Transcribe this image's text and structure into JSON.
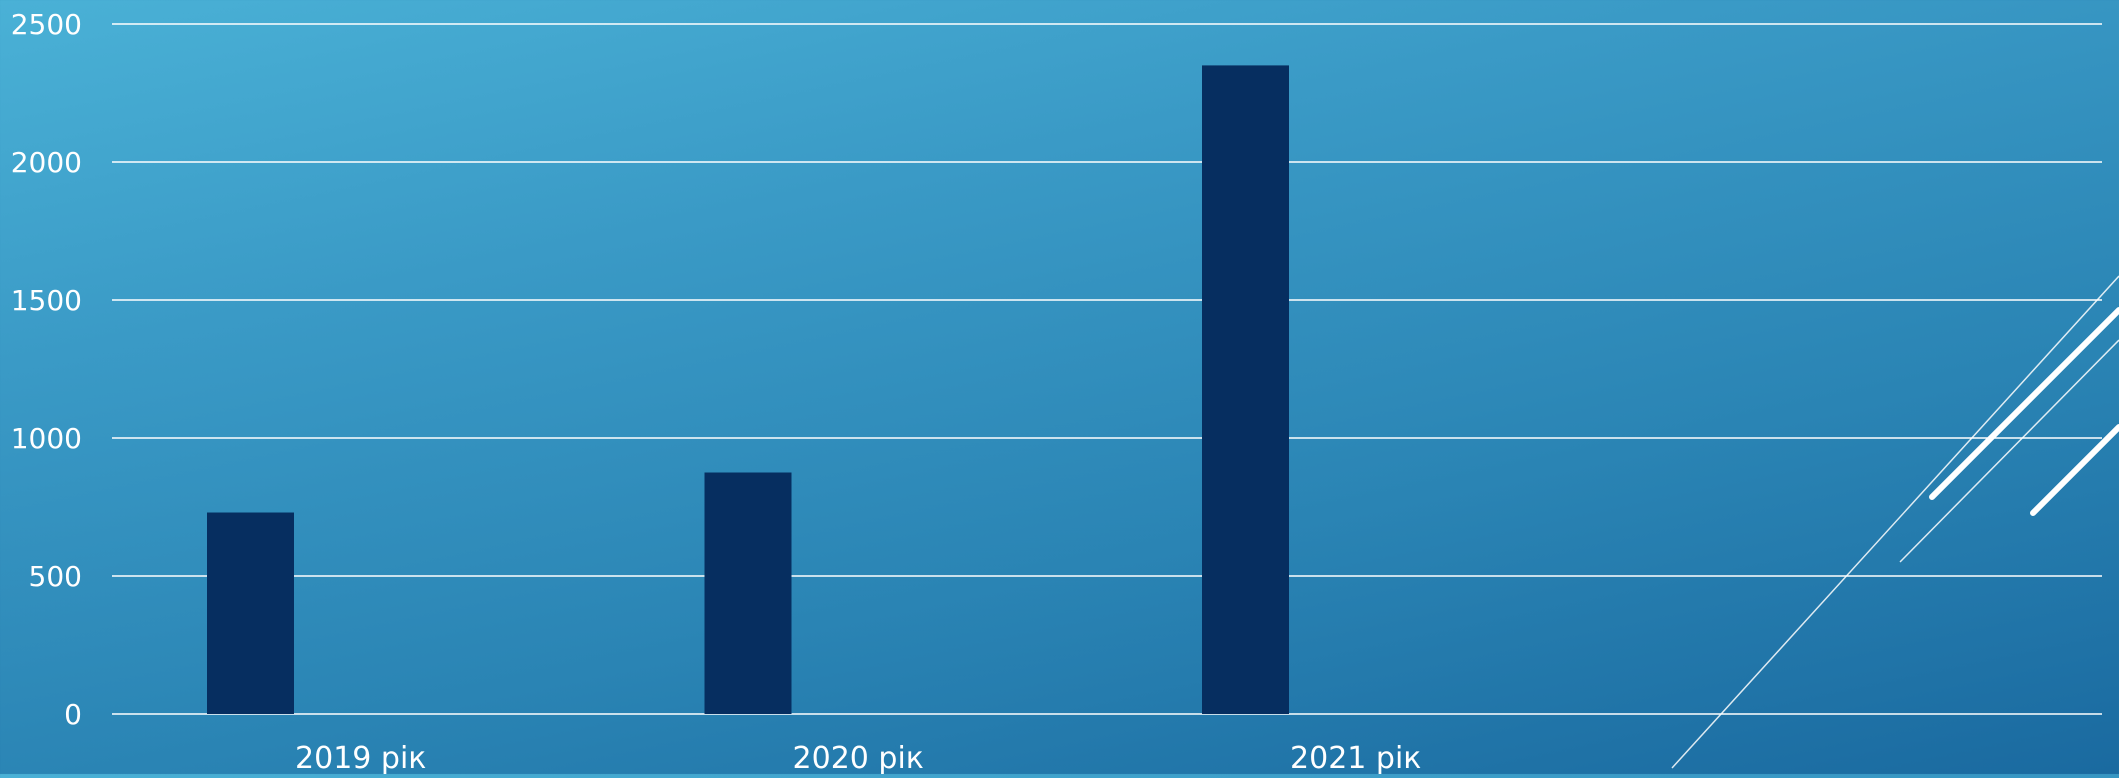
{
  "chart_data": {
    "type": "bar",
    "title": "",
    "xlabel": "",
    "ylabel": "",
    "categories": [
      "2019 рік",
      "2020 рік",
      "2021 рік",
      ""
    ],
    "series": [
      {
        "values": [
          730,
          875,
          2350,
          null
        ]
      }
    ],
    "ylim": [
      0,
      2500
    ],
    "yticks": [
      "0",
      "500",
      "1000",
      "1500",
      "2000",
      "2500"
    ],
    "grid": true,
    "legend": "none",
    "colors": {
      "bar": "#062e60",
      "grid": "#ffffff",
      "text": "#ffffff"
    }
  }
}
